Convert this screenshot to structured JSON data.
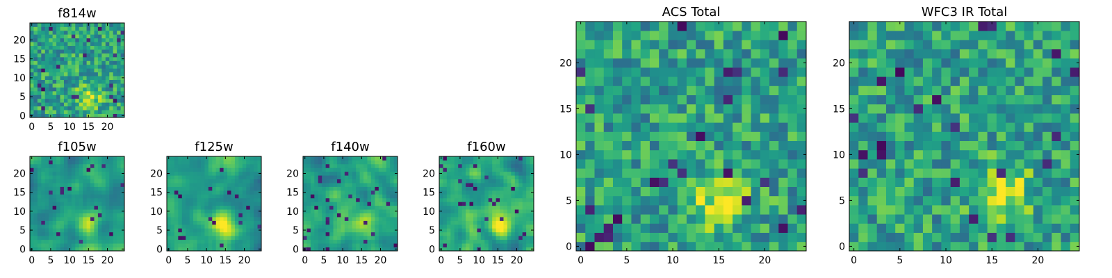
{
  "chart_data": [
    {
      "id": "f814w",
      "type": "heatmap",
      "title": "f814w",
      "grid_size": 25,
      "xlim": [
        0,
        24
      ],
      "ylim": [
        0,
        24
      ],
      "xticks": [
        0,
        5,
        10,
        15,
        20
      ],
      "yticks": [
        0,
        5,
        10,
        15,
        20
      ],
      "colormap": "viridis",
      "bright_spot": [
        15,
        5
      ],
      "noise": "strong"
    },
    {
      "id": "f105w",
      "type": "heatmap",
      "title": "f105w",
      "grid_size": 25,
      "xlim": [
        0,
        24
      ],
      "ylim": [
        0,
        24
      ],
      "xticks": [
        0,
        5,
        10,
        15,
        20
      ],
      "yticks": [
        0,
        5,
        10,
        15,
        20
      ],
      "colormap": "viridis",
      "bright_spot": [
        15,
        7
      ],
      "noise": "smooth"
    },
    {
      "id": "f125w",
      "type": "heatmap",
      "title": "f125w",
      "grid_size": 25,
      "xlim": [
        0,
        24
      ],
      "ylim": [
        0,
        24
      ],
      "xticks": [
        0,
        5,
        10,
        15,
        20
      ],
      "yticks": [
        0,
        5,
        10,
        15,
        20
      ],
      "colormap": "viridis",
      "bright_spot": [
        15,
        6
      ],
      "noise": "smooth"
    },
    {
      "id": "f140w",
      "type": "heatmap",
      "title": "f140w",
      "grid_size": 25,
      "xlim": [
        0,
        24
      ],
      "ylim": [
        0,
        24
      ],
      "xticks": [
        0,
        5,
        10,
        15,
        20
      ],
      "yticks": [
        0,
        5,
        10,
        15,
        20
      ],
      "colormap": "viridis",
      "bright_spot": [
        15,
        6
      ],
      "noise": "smooth"
    },
    {
      "id": "f160w",
      "type": "heatmap",
      "title": "f160w",
      "grid_size": 25,
      "xlim": [
        0,
        24
      ],
      "ylim": [
        0,
        24
      ],
      "xticks": [
        0,
        5,
        10,
        15,
        20
      ],
      "yticks": [
        0,
        5,
        10,
        15,
        20
      ],
      "colormap": "viridis",
      "bright_spot": [
        16,
        6
      ],
      "noise": "smooth"
    },
    {
      "id": "acs-total",
      "type": "heatmap",
      "title": "ACS Total",
      "grid_size": 25,
      "xlim": [
        0,
        24
      ],
      "ylim": [
        0,
        24
      ],
      "xticks": [
        0,
        5,
        10,
        15,
        20
      ],
      "yticks": [
        0,
        5,
        10,
        15,
        20
      ],
      "colormap": "viridis",
      "bright_spot": [
        15,
        5
      ],
      "noise": "medium"
    },
    {
      "id": "wfc3-ir-total",
      "type": "heatmap",
      "title": "WFC3 IR Total",
      "grid_size": 25,
      "xlim": [
        0,
        24
      ],
      "ylim": [
        0,
        24
      ],
      "xticks": [
        0,
        5,
        10,
        15,
        20
      ],
      "yticks": [
        0,
        5,
        10,
        15,
        20
      ],
      "colormap": "viridis",
      "bright_spot": [
        16,
        6
      ],
      "noise": "medium"
    }
  ]
}
